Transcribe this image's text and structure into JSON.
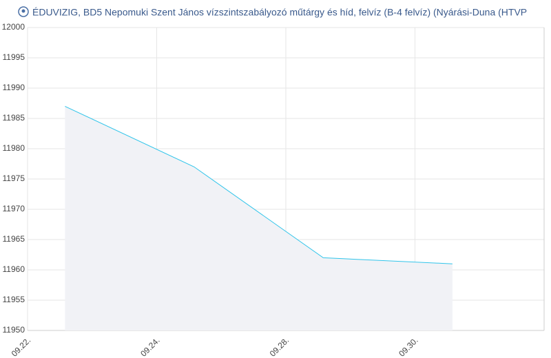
{
  "chart_data": {
    "type": "area",
    "title": "ÉDUVIZIG, BD5 Nepomuki Szent János vízszintszabályozó műtárgy és híd, felvíz (B-4 felvíz) (Nyárási-Duna (HTVP",
    "categories": [
      null,
      null,
      null,
      null
    ],
    "values": [
      11987,
      11977,
      11962,
      11961
    ],
    "color": "#2ec4ea",
    "fill": "#f1f2f6",
    "xticks": [
      "09.22.",
      "09.24.",
      "09.28.",
      "09.30."
    ],
    "ylim": [
      11950,
      12000
    ],
    "yticks": [
      11950,
      11955,
      11960,
      11965,
      11970,
      11975,
      11980,
      11985,
      11990,
      11995,
      12000
    ],
    "grid": true
  }
}
